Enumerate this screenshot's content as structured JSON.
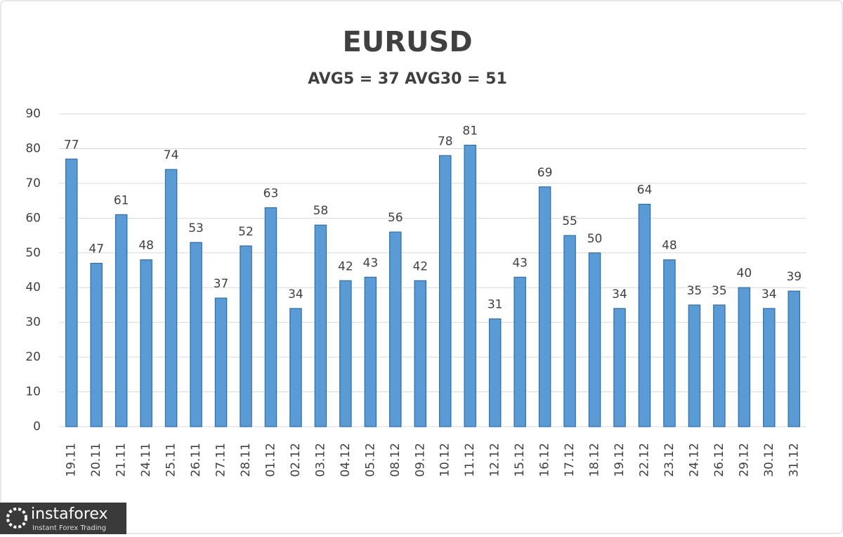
{
  "chart_data": {
    "type": "bar",
    "title": "EURUSD",
    "subtitle": "AVG5 = 37 AVG30 = 51",
    "categories": [
      "19.11",
      "20.11",
      "21.11",
      "24.11",
      "25.11",
      "26.11",
      "27.11",
      "28.11",
      "01.12",
      "02.12",
      "03.12",
      "04.12",
      "05.12",
      "08.12",
      "09.12",
      "10.12",
      "11.12",
      "12.12",
      "15.12",
      "16.12",
      "17.12",
      "18.12",
      "19.12",
      "22.12",
      "23.12",
      "24.12",
      "26.12",
      "29.12",
      "30.12",
      "31.12"
    ],
    "values": [
      77,
      47,
      61,
      48,
      74,
      53,
      37,
      52,
      63,
      34,
      58,
      42,
      43,
      56,
      42,
      78,
      81,
      31,
      43,
      69,
      55,
      50,
      34,
      64,
      48,
      35,
      35,
      40,
      34,
      39
    ],
    "color": "#5b9bd5",
    "ylim": [
      0,
      90
    ],
    "yticks": [
      0,
      10,
      20,
      30,
      40,
      50,
      60,
      70,
      80,
      90
    ],
    "grid": true
  },
  "watermark": {
    "brand": "instaforex",
    "tagline": "Instant Forex Trading"
  }
}
